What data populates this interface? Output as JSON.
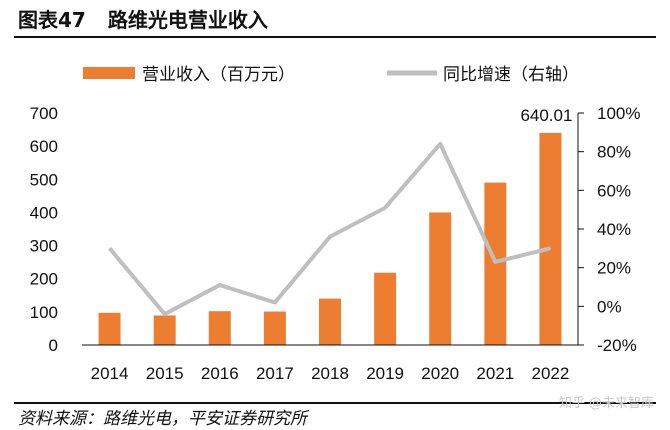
{
  "header": {
    "figure_label": "图表47",
    "title": "路维光电营业收入"
  },
  "footer": {
    "source": "资料来源：路维光电，平安证券研究所",
    "watermark": "知乎 @未来智库"
  },
  "colors": {
    "bar": "#ED7D31",
    "line": "#BFBFBF",
    "text": "#111111"
  },
  "chart_data": {
    "type": "bar",
    "categories": [
      "2014",
      "2015",
      "2016",
      "2017",
      "2018",
      "2019",
      "2020",
      "2021",
      "2022"
    ],
    "series": [
      {
        "name": "营业收入（百万元）",
        "type": "bar",
        "axis": "left",
        "values": [
          97,
          89,
          102,
          101,
          140,
          218,
          400,
          490,
          640.01
        ]
      },
      {
        "name": "同比增速（右轴）",
        "type": "line",
        "axis": "right",
        "values": [
          30,
          -4,
          11,
          2,
          36,
          51,
          84,
          23,
          30
        ]
      }
    ],
    "data_labels": [
      {
        "category": "2022",
        "text": "640.01"
      }
    ],
    "ylim_left": [
      0,
      700
    ],
    "yticks_left": [
      "0",
      "100",
      "200",
      "300",
      "400",
      "500",
      "600",
      "700"
    ],
    "ylim_right": [
      -20,
      100
    ],
    "yticks_right": [
      "-20%",
      "0%",
      "20%",
      "40%",
      "60%",
      "80%",
      "100%"
    ],
    "grid": false,
    "legend_position": "top"
  }
}
